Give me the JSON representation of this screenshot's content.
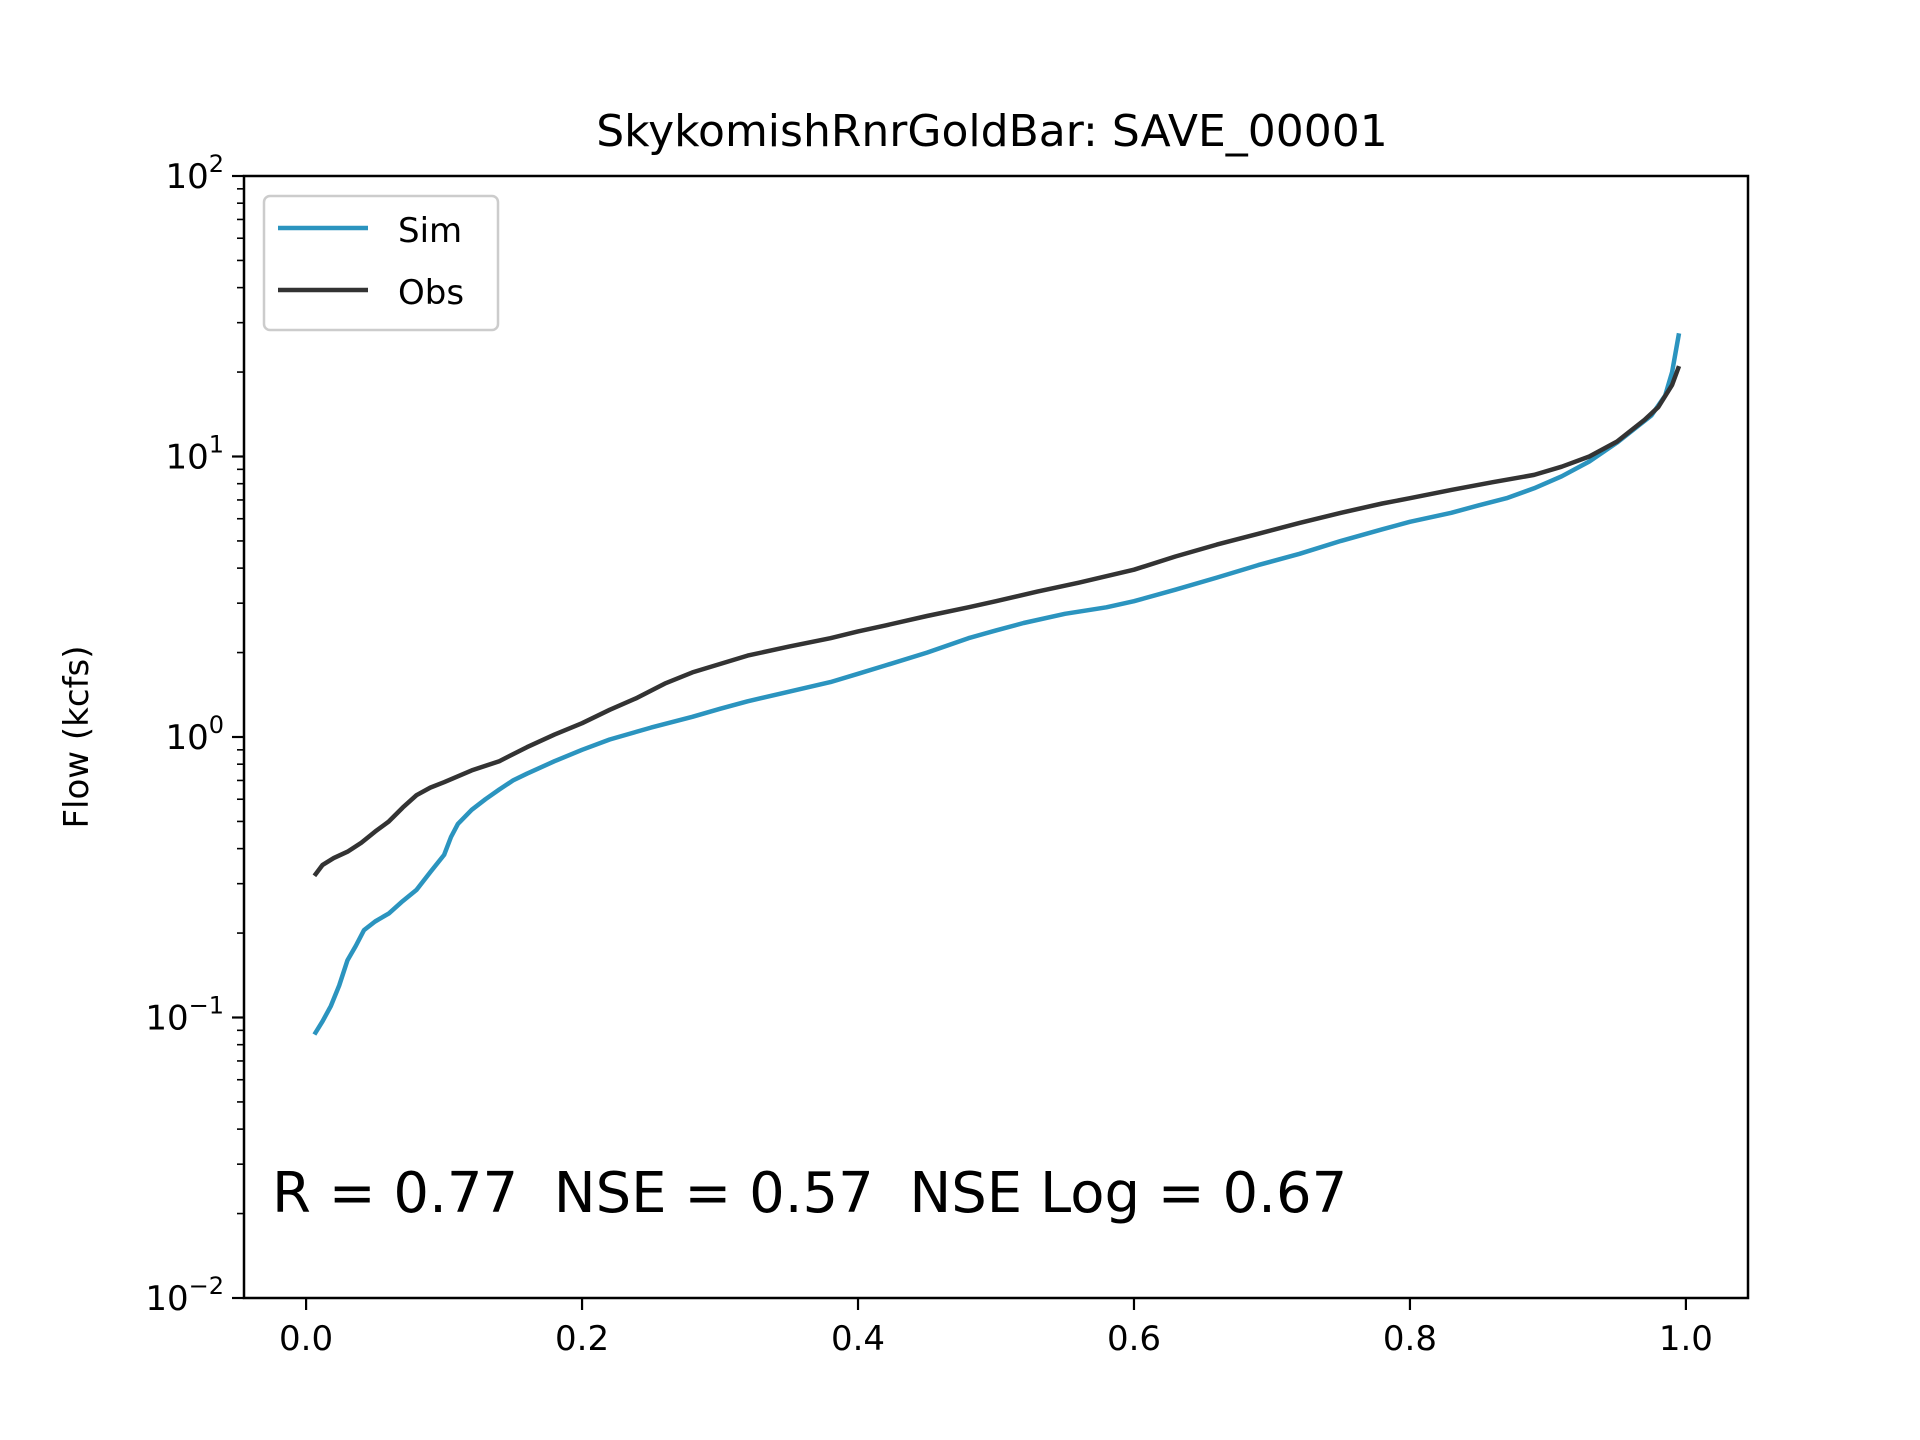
{
  "chart_data": {
    "type": "line",
    "title": "SkykomishRnrGoldBar: SAVE_00001",
    "xlabel": "",
    "ylabel": "Flow (kcfs)",
    "yscale": "log",
    "xlim": [
      -0.045,
      1.045
    ],
    "ylim": [
      0.01,
      100
    ],
    "xticks": [
      {
        "value": 0.0,
        "label": "0.0"
      },
      {
        "value": 0.2,
        "label": "0.2"
      },
      {
        "value": 0.4,
        "label": "0.4"
      },
      {
        "value": 0.6,
        "label": "0.6"
      },
      {
        "value": 0.8,
        "label": "0.8"
      },
      {
        "value": 1.0,
        "label": "1.0"
      }
    ],
    "yticks": [
      {
        "value": 100,
        "base": "10",
        "exp": "2"
      },
      {
        "value": 10,
        "base": "10",
        "exp": "1"
      },
      {
        "value": 1,
        "base": "10",
        "exp": "0"
      },
      {
        "value": 0.1,
        "base": "10",
        "exp": "−1"
      },
      {
        "value": 0.01,
        "base": "10",
        "exp": "−2"
      }
    ],
    "grid": false,
    "legend_position": "upper-left",
    "annotation": "R = 0.77  NSE = 0.57  NSE Log = 0.67",
    "series": [
      {
        "name": "Sim",
        "color": "#2b94bf",
        "points": [
          [
            0.006,
            0.087
          ],
          [
            0.012,
            0.097
          ],
          [
            0.018,
            0.11
          ],
          [
            0.024,
            0.13
          ],
          [
            0.03,
            0.16
          ],
          [
            0.036,
            0.18
          ],
          [
            0.042,
            0.205
          ],
          [
            0.05,
            0.22
          ],
          [
            0.06,
            0.235
          ],
          [
            0.07,
            0.26
          ],
          [
            0.08,
            0.285
          ],
          [
            0.09,
            0.33
          ],
          [
            0.1,
            0.38
          ],
          [
            0.105,
            0.44
          ],
          [
            0.11,
            0.49
          ],
          [
            0.12,
            0.55
          ],
          [
            0.13,
            0.6
          ],
          [
            0.14,
            0.65
          ],
          [
            0.15,
            0.7
          ],
          [
            0.16,
            0.74
          ],
          [
            0.18,
            0.82
          ],
          [
            0.2,
            0.9
          ],
          [
            0.22,
            0.98
          ],
          [
            0.25,
            1.08
          ],
          [
            0.28,
            1.18
          ],
          [
            0.3,
            1.26
          ],
          [
            0.32,
            1.34
          ],
          [
            0.35,
            1.45
          ],
          [
            0.38,
            1.57
          ],
          [
            0.4,
            1.68
          ],
          [
            0.42,
            1.8
          ],
          [
            0.45,
            2.0
          ],
          [
            0.48,
            2.25
          ],
          [
            0.5,
            2.4
          ],
          [
            0.52,
            2.55
          ],
          [
            0.55,
            2.75
          ],
          [
            0.58,
            2.9
          ],
          [
            0.6,
            3.05
          ],
          [
            0.63,
            3.35
          ],
          [
            0.66,
            3.7
          ],
          [
            0.69,
            4.1
          ],
          [
            0.72,
            4.5
          ],
          [
            0.75,
            5.0
          ],
          [
            0.78,
            5.5
          ],
          [
            0.8,
            5.85
          ],
          [
            0.83,
            6.3
          ],
          [
            0.85,
            6.7
          ],
          [
            0.87,
            7.1
          ],
          [
            0.89,
            7.7
          ],
          [
            0.91,
            8.5
          ],
          [
            0.93,
            9.6
          ],
          [
            0.95,
            11.2
          ],
          [
            0.965,
            12.8
          ],
          [
            0.975,
            14.0
          ],
          [
            0.985,
            16.5
          ],
          [
            0.99,
            20.0
          ],
          [
            0.995,
            27.5
          ]
        ]
      },
      {
        "name": "Obs",
        "color": "#333333",
        "points": [
          [
            0.006,
            0.32
          ],
          [
            0.012,
            0.35
          ],
          [
            0.02,
            0.37
          ],
          [
            0.03,
            0.39
          ],
          [
            0.04,
            0.42
          ],
          [
            0.05,
            0.46
          ],
          [
            0.06,
            0.5
          ],
          [
            0.07,
            0.56
          ],
          [
            0.08,
            0.62
          ],
          [
            0.09,
            0.66
          ],
          [
            0.1,
            0.69
          ],
          [
            0.12,
            0.76
          ],
          [
            0.14,
            0.82
          ],
          [
            0.16,
            0.92
          ],
          [
            0.18,
            1.02
          ],
          [
            0.2,
            1.12
          ],
          [
            0.22,
            1.25
          ],
          [
            0.24,
            1.38
          ],
          [
            0.26,
            1.55
          ],
          [
            0.28,
            1.7
          ],
          [
            0.3,
            1.82
          ],
          [
            0.32,
            1.95
          ],
          [
            0.35,
            2.1
          ],
          [
            0.38,
            2.25
          ],
          [
            0.4,
            2.38
          ],
          [
            0.42,
            2.5
          ],
          [
            0.45,
            2.7
          ],
          [
            0.48,
            2.9
          ],
          [
            0.5,
            3.05
          ],
          [
            0.53,
            3.3
          ],
          [
            0.56,
            3.55
          ],
          [
            0.6,
            3.95
          ],
          [
            0.63,
            4.4
          ],
          [
            0.66,
            4.85
          ],
          [
            0.69,
            5.3
          ],
          [
            0.72,
            5.8
          ],
          [
            0.75,
            6.3
          ],
          [
            0.78,
            6.8
          ],
          [
            0.8,
            7.1
          ],
          [
            0.83,
            7.6
          ],
          [
            0.86,
            8.1
          ],
          [
            0.89,
            8.6
          ],
          [
            0.91,
            9.2
          ],
          [
            0.93,
            10.0
          ],
          [
            0.95,
            11.3
          ],
          [
            0.97,
            13.5
          ],
          [
            0.98,
            15.0
          ],
          [
            0.99,
            18.0
          ],
          [
            0.995,
            21.0
          ]
        ]
      }
    ]
  }
}
